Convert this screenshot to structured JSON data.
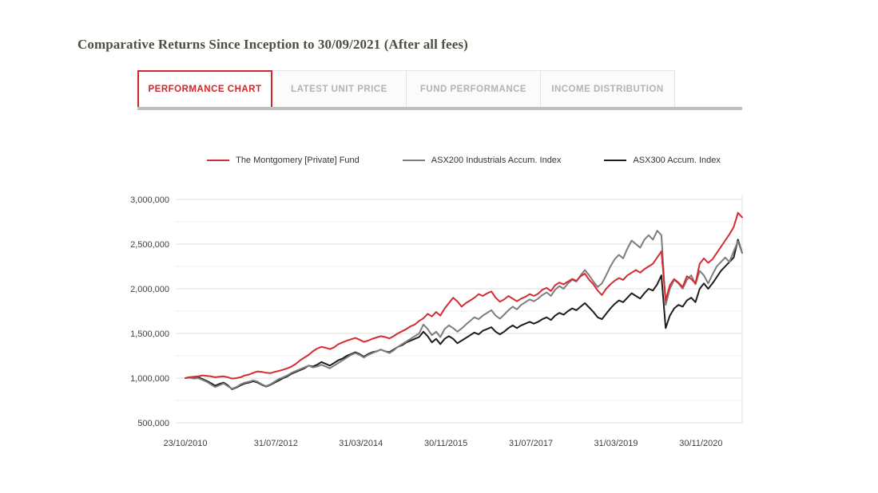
{
  "page": {
    "title": "Comparative Returns Since Inception to 30/09/2021 (After all fees)"
  },
  "tabs": {
    "items": [
      {
        "label": "PERFORMANCE CHART",
        "active": true
      },
      {
        "label": "LATEST UNIT PRICE",
        "active": false
      },
      {
        "label": "FUND PERFORMANCE",
        "active": false
      },
      {
        "label": "INCOME DISTRIBUTION",
        "active": false
      }
    ]
  },
  "colors": {
    "accent_red": "#d2262c",
    "series_red": "#d62b30",
    "series_gray": "#7d7d7d",
    "series_black": "#1d1d1d",
    "tab_inactive_text": "#b3b3b5",
    "gridline": "#e3e3e3",
    "title_text": "#4e4e43"
  },
  "chart_data": {
    "type": "line",
    "title": "Comparative Returns Since Inception to 30/09/2021 (After all fees)",
    "xlabel": "",
    "ylabel": "",
    "x_start": "23/10/2010",
    "x_end": "30/09/2021",
    "x_interval": "monthly",
    "x_tick_labels": [
      "23/10/2010",
      "31/07/2012",
      "31/03/2014",
      "30/11/2015",
      "31/07/2017",
      "31/03/2019",
      "30/11/2020"
    ],
    "y_ticks": [
      {
        "label": "3,000,000",
        "value": 3000000
      },
      {
        "label": "2,500,000",
        "value": 2500000
      },
      {
        "label": "2,000,000",
        "value": 2000000
      },
      {
        "label": "1,500,000",
        "value": 1500000
      },
      {
        "label": "1,000,000",
        "value": 1000000
      },
      {
        "label": "500,000",
        "value": 500000
      }
    ],
    "ylim": [
      500000,
      3050000
    ],
    "grid": "horizontal, minor step 250000",
    "legend_position": "top",
    "series": [
      {
        "name": "The Montgomery [Private] Fund",
        "color": "#d62b30",
        "values": [
          1000000,
          1010000,
          1015000,
          1020000,
          1030000,
          1025000,
          1020000,
          1010000,
          1015000,
          1020000,
          1010000,
          995000,
          1000000,
          1010000,
          1030000,
          1040000,
          1060000,
          1075000,
          1070000,
          1060000,
          1055000,
          1070000,
          1080000,
          1095000,
          1110000,
          1130000,
          1160000,
          1200000,
          1230000,
          1260000,
          1300000,
          1330000,
          1350000,
          1340000,
          1325000,
          1345000,
          1380000,
          1400000,
          1420000,
          1435000,
          1450000,
          1430000,
          1405000,
          1420000,
          1440000,
          1455000,
          1470000,
          1460000,
          1445000,
          1470000,
          1500000,
          1525000,
          1550000,
          1580000,
          1600000,
          1640000,
          1670000,
          1720000,
          1690000,
          1740000,
          1700000,
          1780000,
          1840000,
          1900000,
          1860000,
          1800000,
          1840000,
          1870000,
          1900000,
          1940000,
          1920000,
          1950000,
          1970000,
          1900000,
          1855000,
          1880000,
          1920000,
          1890000,
          1860000,
          1890000,
          1910000,
          1940000,
          1920000,
          1945000,
          1990000,
          2010000,
          1975000,
          2040000,
          2070000,
          2050000,
          2080000,
          2110000,
          2090000,
          2140000,
          2170000,
          2100000,
          2050000,
          1980000,
          1930000,
          2000000,
          2050000,
          2090000,
          2120000,
          2100000,
          2150000,
          2180000,
          2210000,
          2180000,
          2220000,
          2250000,
          2280000,
          2350000,
          2420000,
          1870000,
          2040000,
          2110000,
          2070000,
          2020000,
          2140000,
          2110000,
          2060000,
          2280000,
          2340000,
          2290000,
          2330000,
          2400000,
          2470000,
          2540000,
          2610000,
          2690000,
          2850000,
          2800000
        ]
      },
      {
        "name": "ASX200 Industrials Accum. Index",
        "color": "#7d7d7d",
        "values": [
          1000000,
          1005000,
          995000,
          1000000,
          980000,
          960000,
          930000,
          900000,
          920000,
          940000,
          910000,
          880000,
          900000,
          930000,
          950000,
          960000,
          975000,
          960000,
          930000,
          910000,
          930000,
          960000,
          990000,
          1010000,
          1030000,
          1060000,
          1080000,
          1100000,
          1120000,
          1140000,
          1120000,
          1130000,
          1150000,
          1130000,
          1110000,
          1140000,
          1170000,
          1200000,
          1230000,
          1260000,
          1280000,
          1260000,
          1230000,
          1260000,
          1280000,
          1300000,
          1320000,
          1300000,
          1280000,
          1310000,
          1350000,
          1380000,
          1410000,
          1440000,
          1470000,
          1500000,
          1600000,
          1550000,
          1480000,
          1520000,
          1460000,
          1550000,
          1590000,
          1560000,
          1520000,
          1555000,
          1600000,
          1640000,
          1680000,
          1660000,
          1700000,
          1730000,
          1760000,
          1700000,
          1665000,
          1710000,
          1760000,
          1800000,
          1770000,
          1820000,
          1850000,
          1880000,
          1860000,
          1890000,
          1930000,
          1960000,
          1920000,
          1990000,
          2030000,
          2000000,
          2060000,
          2100000,
          2080000,
          2150000,
          2210000,
          2150000,
          2080000,
          2020000,
          2060000,
          2150000,
          2250000,
          2330000,
          2380000,
          2340000,
          2450000,
          2540000,
          2500000,
          2460000,
          2550000,
          2600000,
          2550000,
          2650000,
          2600000,
          1820000,
          2000000,
          2100000,
          2060000,
          2000000,
          2100000,
          2150000,
          2050000,
          2200000,
          2150000,
          2060000,
          2160000,
          2250000,
          2300000,
          2350000,
          2300000,
          2420000,
          2530000,
          2400000
        ]
      },
      {
        "name": "ASX300 Accum. Index",
        "color": "#1d1d1d",
        "values": [
          1000000,
          1010000,
          1000000,
          1010000,
          990000,
          970000,
          945000,
          915000,
          935000,
          950000,
          920000,
          875000,
          895000,
          920000,
          940000,
          950000,
          965000,
          950000,
          925000,
          905000,
          925000,
          950000,
          975000,
          1000000,
          1020000,
          1050000,
          1070000,
          1090000,
          1110000,
          1140000,
          1130000,
          1150000,
          1180000,
          1160000,
          1140000,
          1170000,
          1200000,
          1220000,
          1250000,
          1270000,
          1290000,
          1270000,
          1240000,
          1270000,
          1290000,
          1300000,
          1320000,
          1300000,
          1290000,
          1320000,
          1350000,
          1370000,
          1400000,
          1420000,
          1440000,
          1460000,
          1520000,
          1470000,
          1400000,
          1440000,
          1380000,
          1440000,
          1470000,
          1440000,
          1390000,
          1420000,
          1450000,
          1480000,
          1510000,
          1490000,
          1530000,
          1550000,
          1570000,
          1520000,
          1490000,
          1520000,
          1560000,
          1590000,
          1560000,
          1590000,
          1610000,
          1630000,
          1610000,
          1630000,
          1660000,
          1680000,
          1650000,
          1700000,
          1730000,
          1710000,
          1750000,
          1780000,
          1760000,
          1800000,
          1840000,
          1790000,
          1740000,
          1680000,
          1660000,
          1720000,
          1780000,
          1830000,
          1870000,
          1850000,
          1900000,
          1950000,
          1920000,
          1890000,
          1950000,
          2000000,
          1980000,
          2050000,
          2150000,
          1560000,
          1700000,
          1780000,
          1820000,
          1800000,
          1870000,
          1900000,
          1850000,
          2000000,
          2060000,
          2000000,
          2060000,
          2130000,
          2200000,
          2250000,
          2300000,
          2350000,
          2550000,
          2400000
        ]
      }
    ]
  }
}
